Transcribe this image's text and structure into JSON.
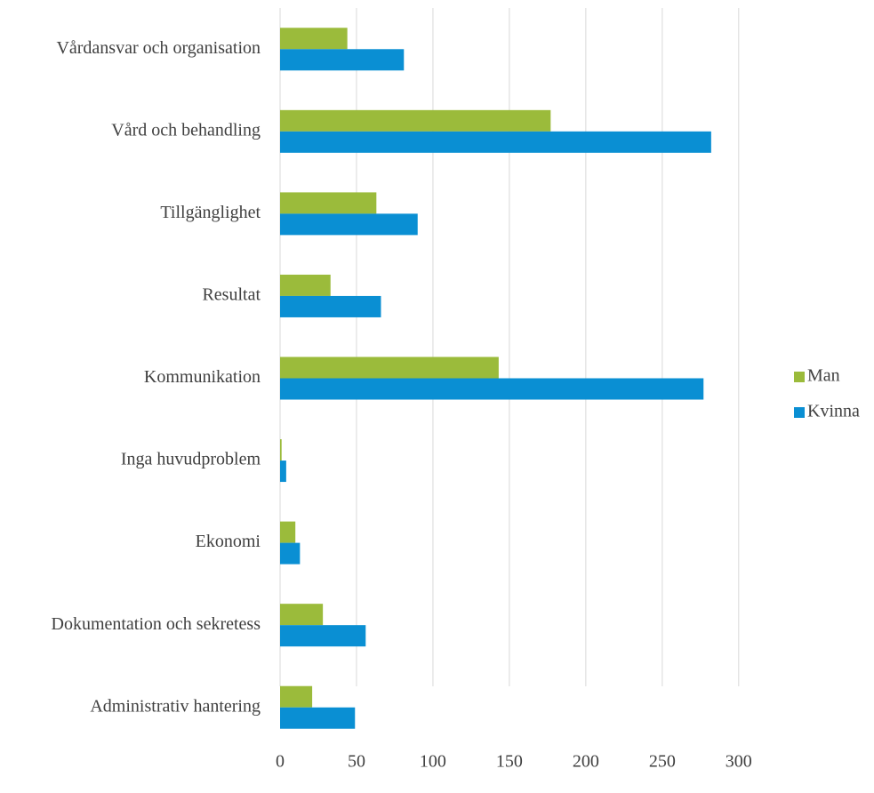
{
  "chart_data": {
    "type": "bar",
    "orientation": "horizontal",
    "categories": [
      "Vårdansvar och organisation",
      "Vård och behandling",
      "Tillgänglighet",
      "Resultat",
      "Kommunikation",
      "Inga huvudproblem",
      "Ekonomi",
      "Dokumentation och sekretess",
      "Administrativ hantering"
    ],
    "series": [
      {
        "name": "Man",
        "color": "#9bbb3b",
        "values": [
          44,
          177,
          63,
          33,
          143,
          1,
          10,
          28,
          21
        ]
      },
      {
        "name": "Kvinna",
        "color": "#0a8fd3",
        "values": [
          81,
          282,
          90,
          66,
          277,
          4,
          13,
          56,
          49
        ]
      }
    ],
    "xlim": [
      0,
      310
    ],
    "xticks": [
      0,
      50,
      100,
      150,
      200,
      250,
      300
    ],
    "grid": true,
    "legend": "right"
  }
}
